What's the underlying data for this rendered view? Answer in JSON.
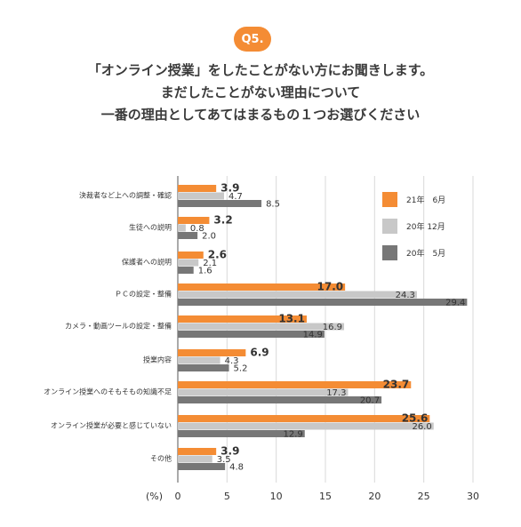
{
  "header": {
    "badge": "Q5.",
    "title_lines": [
      "「オンライン授業」をしたことがない方にお聞きします。",
      "まだしたことがない理由について",
      "一番の理由としてあてはまるもの１つお選びください"
    ]
  },
  "colors": {
    "s21_6": "#f48c34",
    "s20_12": "#c8c8c8",
    "s20_5": "#777777",
    "badge": "#f48c34"
  },
  "chart_data": {
    "type": "bar",
    "orientation": "horizontal",
    "categories": [
      "決裁者など上への調整・確認",
      "生徒への説明",
      "保護者への説明",
      "ＰＣの設定・整備",
      "カメラ・動画ツールの設定・整備",
      "授業内容",
      "オンライン授業へのそもそもの知識不足",
      "オンライン授業が必要と感じていない",
      "その他"
    ],
    "series": [
      {
        "name": "21年　6月",
        "values": [
          3.9,
          3.2,
          2.6,
          17.0,
          13.1,
          6.9,
          23.7,
          25.6,
          3.9
        ],
        "labels": [
          "3.9",
          "3.2",
          "2.6",
          "17.0",
          "13.1",
          "6.9",
          "23.7",
          "25.6",
          "3.9"
        ]
      },
      {
        "name": "20年 12月",
        "values": [
          4.7,
          0.8,
          2.1,
          24.3,
          16.9,
          4.3,
          17.3,
          26.0,
          3.5
        ],
        "labels": [
          "4.7",
          "0.8",
          "2.1",
          "24.3",
          "16.9",
          "4.3",
          "17.3",
          "26.0",
          "3.5"
        ]
      },
      {
        "name": "20年　5月",
        "values": [
          8.5,
          2.0,
          1.6,
          29.4,
          14.9,
          5.2,
          20.7,
          12.9,
          4.8
        ],
        "labels": [
          "8.5",
          "2.0",
          "1.6",
          "29.4",
          "14.9",
          "5.2",
          "20.7",
          "12.9",
          "4.8"
        ]
      }
    ],
    "xlim": [
      0,
      30
    ],
    "xticks": [
      "0",
      "5",
      "10",
      "15",
      "20",
      "25",
      "30"
    ],
    "xlabel": "(%)",
    "grid": true,
    "legend": "top-right"
  }
}
